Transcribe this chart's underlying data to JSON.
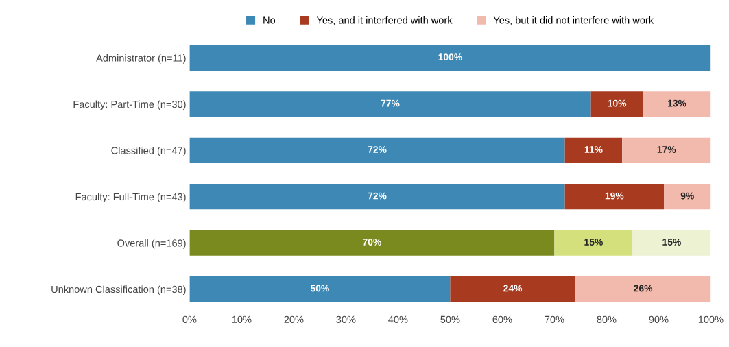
{
  "chart_data": {
    "type": "bar",
    "orientation": "horizontal",
    "stacked": true,
    "legend": "top",
    "categories": [
      "Administrator (n=11)",
      "Faculty: Part-Time (n=30)",
      "Classified (n=47)",
      "Faculty: Full-Time (n=43)",
      "Overall (n=169)",
      "Unknown Classification (n=38)"
    ],
    "series": [
      {
        "name": "No",
        "color": "#3d88b5",
        "colors": [
          "#3d88b5",
          "#3d88b5",
          "#3d88b5",
          "#3d88b5",
          "#7a8a1e",
          "#3d88b5"
        ],
        "values": [
          100,
          77,
          72,
          72,
          70,
          50
        ],
        "value_labels": [
          "100%",
          "77%",
          "72%",
          "72%",
          "70%",
          "50%"
        ]
      },
      {
        "name": "Yes, and it interfered with work",
        "color": "#a83b1f",
        "colors": [
          "#a83b1f",
          "#a83b1f",
          "#a83b1f",
          "#a83b1f",
          "#d3e07c",
          "#a83b1f"
        ],
        "values": [
          0,
          10,
          11,
          19,
          15,
          24
        ],
        "value_labels": [
          null,
          "10%",
          "11%",
          "19%",
          "15%",
          "24%"
        ]
      },
      {
        "name": "Yes, but it did not interfere with work",
        "color": "#f2b9ad",
        "colors": [
          "#f2b9ad",
          "#f2b9ad",
          "#f2b9ad",
          "#f2b9ad",
          "#edf2d2",
          "#f2b9ad"
        ],
        "values": [
          0,
          13,
          17,
          9,
          15,
          26
        ],
        "value_labels": [
          null,
          "13%",
          "17%",
          "9%",
          "15%",
          "26%"
        ]
      }
    ],
    "xlim": [
      0,
      100
    ],
    "xticks": [
      {
        "value": 0,
        "label": "0%"
      },
      {
        "value": 10,
        "label": "10%"
      },
      {
        "value": 20,
        "label": "20%"
      },
      {
        "value": 30,
        "label": "30%"
      },
      {
        "value": 40,
        "label": "40%"
      },
      {
        "value": 50,
        "label": "50%"
      },
      {
        "value": 60,
        "label": "60%"
      },
      {
        "value": 70,
        "label": "70%"
      },
      {
        "value": 80,
        "label": "80%"
      },
      {
        "value": 90,
        "label": "90%"
      },
      {
        "value": 100,
        "label": "100%"
      }
    ],
    "grid": false
  }
}
